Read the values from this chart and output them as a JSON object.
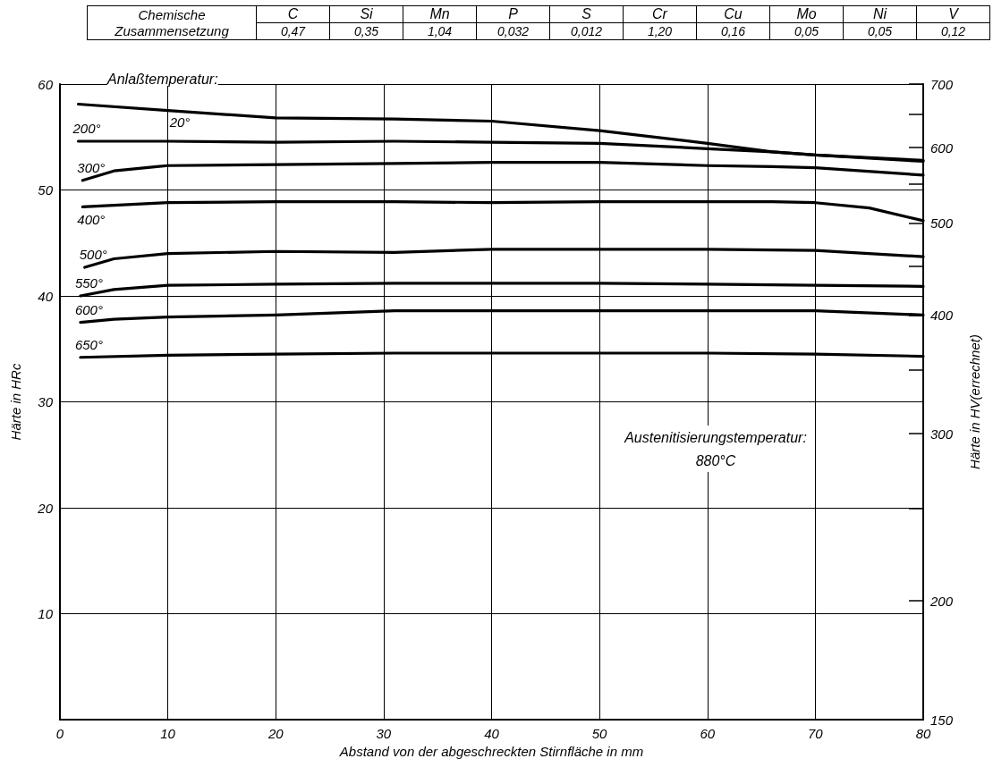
{
  "chart_data": [
    {
      "type": "other",
      "title": "Chemische Zusammensetzung",
      "categories": [
        "C",
        "Si",
        "Mn",
        "P",
        "S",
        "Cr",
        "Cu",
        "Mo",
        "Ni",
        "V"
      ],
      "value_labels": [
        "0,47",
        "0,35",
        "1,04",
        "0,032",
        "0,012",
        "1,20",
        "0,16",
        "0,05",
        "0,05",
        "0,12"
      ]
    },
    {
      "type": "line",
      "xlabel": "Abstand von der abgeschreckten Stirnfläche in mm",
      "ylabel": "Härte in HRc",
      "y2label": "Härte in HV(errechnet)",
      "annotations": [
        "Anlaßtemperatur:",
        "Austenitisierungstemperatur:\n880°C"
      ],
      "xlim": [
        0,
        80
      ],
      "xticks": [
        0,
        10,
        20,
        30,
        40,
        50,
        60,
        70,
        80
      ],
      "ylim": [
        0,
        60
      ],
      "yticks": [
        {
          "value": 0,
          "label": null
        },
        10,
        20,
        30,
        40,
        50,
        60
      ],
      "y2lim": [
        150,
        700
      ],
      "y2ticks": [
        150,
        200,
        {
          "value": 250,
          "label": null
        },
        300,
        {
          "value": 350,
          "label": null
        },
        400,
        {
          "value": 450,
          "label": null
        },
        500,
        {
          "value": 550,
          "label": null
        },
        600,
        {
          "value": 650,
          "label": null
        },
        700
      ],
      "log": "y2",
      "grid": true,
      "legend": false,
      "marker": "none",
      "line_style": "solid",
      "series": [
        {
          "name": "20°",
          "color": "#000000",
          "x": [
            1.7,
            10,
            20,
            31,
            40,
            50,
            60,
            66,
            70,
            80
          ],
          "values": [
            58.1,
            57.5,
            56.8,
            56.7,
            56.5,
            55.6,
            54.4,
            53.6,
            53.3,
            52.7
          ]
        },
        {
          "name": "200°",
          "color": "#000000",
          "x": [
            1.7,
            10,
            20,
            31,
            40,
            50,
            60,
            66,
            70,
            80
          ],
          "values": [
            54.6,
            54.6,
            54.5,
            54.6,
            54.5,
            54.4,
            53.9,
            53.6,
            53.3,
            52.8
          ]
        },
        {
          "name": "300°",
          "color": "#000000",
          "x": [
            2.1,
            5,
            9,
            10,
            20,
            31,
            40,
            50,
            60,
            66,
            70,
            80
          ],
          "values": [
            50.9,
            51.8,
            52.2,
            52.3,
            52.4,
            52.5,
            52.6,
            52.6,
            52.3,
            52.2,
            52.1,
            51.4
          ]
        },
        {
          "name": "400°",
          "color": "#000000",
          "x": [
            2.1,
            10,
            20,
            31,
            40,
            50,
            60,
            66,
            70,
            75,
            80
          ],
          "values": [
            48.4,
            48.8,
            48.9,
            48.9,
            48.8,
            48.9,
            48.9,
            48.9,
            48.8,
            48.3,
            47.1
          ]
        },
        {
          "name": "500°",
          "color": "#000000",
          "x": [
            2.3,
            5,
            10,
            20,
            31,
            40,
            50,
            60,
            70,
            80
          ],
          "values": [
            42.7,
            43.5,
            44,
            44.2,
            44.1,
            44.4,
            44.4,
            44.4,
            44.3,
            43.7
          ]
        },
        {
          "name": "550°",
          "color": "#000000",
          "x": [
            1.9,
            5,
            10,
            20,
            31,
            40,
            50,
            60,
            70,
            80
          ],
          "values": [
            40,
            40.6,
            41,
            41.1,
            41.2,
            41.2,
            41.2,
            41.1,
            41,
            40.9
          ]
        },
        {
          "name": "600°",
          "color": "#000000",
          "x": [
            1.9,
            5,
            10,
            20,
            31,
            40,
            50,
            60,
            70,
            80
          ],
          "values": [
            37.5,
            37.8,
            38,
            38.2,
            38.6,
            38.6,
            38.6,
            38.6,
            38.6,
            38.2
          ]
        },
        {
          "name": "650°",
          "color": "#000000",
          "x": [
            1.9,
            10,
            20,
            31,
            40,
            50,
            60,
            70,
            80
          ],
          "values": [
            34.2,
            34.4,
            34.5,
            34.6,
            34.6,
            34.6,
            34.6,
            34.5,
            34.3
          ]
        }
      ]
    }
  ]
}
